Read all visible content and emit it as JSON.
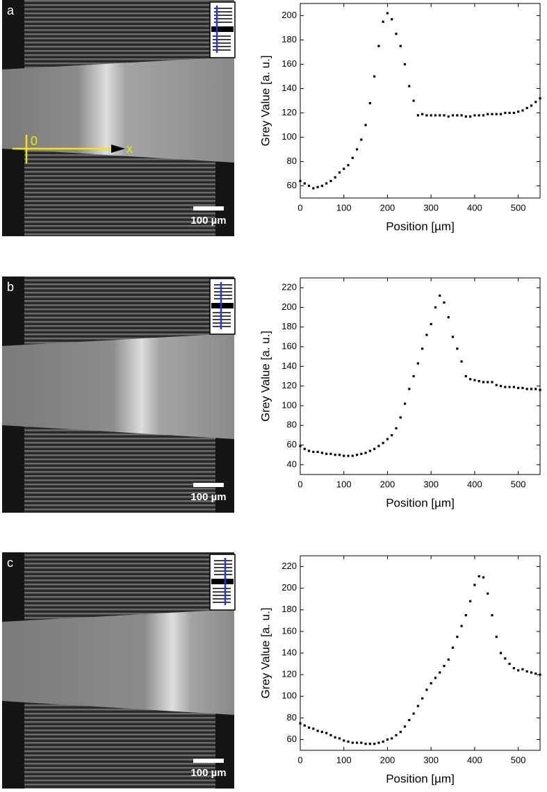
{
  "chart_data": [
    {
      "type": "scatter",
      "panel_label": "a",
      "scale_bar_label": "100 µm",
      "annotations": [
        "0",
        "x"
      ],
      "x_label": "Position [µm]",
      "y_label": "Grey Value [a. u.]",
      "color": "#000000",
      "xlim": [
        0,
        550
      ],
      "xticks": [
        0,
        100,
        200,
        300,
        400,
        500
      ],
      "ylim": [
        50,
        210
      ],
      "yticks": [
        60,
        80,
        100,
        120,
        140,
        160,
        180,
        200
      ],
      "x": [
        0,
        10,
        20,
        30,
        40,
        50,
        60,
        70,
        80,
        90,
        100,
        110,
        120,
        130,
        140,
        150,
        160,
        170,
        180,
        190,
        200,
        210,
        220,
        230,
        240,
        250,
        260,
        270,
        280,
        290,
        300,
        310,
        320,
        330,
        340,
        350,
        360,
        370,
        380,
        390,
        400,
        410,
        420,
        430,
        440,
        450,
        460,
        470,
        480,
        490,
        500,
        510,
        520,
        530,
        540,
        550
      ],
      "values": [
        64,
        62,
        60,
        58,
        59,
        60,
        62,
        64,
        67,
        71,
        74,
        77,
        83,
        90,
        98,
        110,
        128,
        150,
        175,
        195,
        202,
        197,
        185,
        175,
        160,
        142,
        130,
        118,
        119,
        118,
        118,
        118,
        118,
        118,
        117,
        118,
        118,
        118,
        117,
        117,
        118,
        118,
        118,
        119,
        119,
        119,
        119,
        120,
        120,
        120,
        121,
        122,
        124,
        126,
        129,
        132
      ]
    },
    {
      "type": "scatter",
      "panel_label": "b",
      "scale_bar_label": "100 µm",
      "x_label": "Position [µm]",
      "y_label": "Grey Value [a. u.]",
      "color": "#000000",
      "xlim": [
        0,
        550
      ],
      "xticks": [
        0,
        100,
        200,
        300,
        400,
        500
      ],
      "ylim": [
        30,
        230
      ],
      "yticks": [
        40,
        60,
        80,
        100,
        120,
        140,
        160,
        180,
        200,
        220
      ],
      "x": [
        0,
        10,
        20,
        30,
        40,
        50,
        60,
        70,
        80,
        90,
        100,
        110,
        120,
        130,
        140,
        150,
        160,
        170,
        180,
        190,
        200,
        210,
        220,
        230,
        240,
        250,
        260,
        270,
        280,
        290,
        300,
        310,
        320,
        330,
        340,
        350,
        360,
        370,
        380,
        390,
        400,
        410,
        420,
        430,
        440,
        450,
        460,
        470,
        480,
        490,
        500,
        510,
        520,
        530,
        540,
        550
      ],
      "values": [
        59,
        56,
        54,
        53,
        53,
        52,
        51,
        51,
        50,
        50,
        49,
        49,
        49,
        50,
        51,
        52,
        54,
        56,
        59,
        62,
        66,
        70,
        77,
        88,
        102,
        117,
        130,
        143,
        158,
        172,
        183,
        200,
        212,
        205,
        190,
        170,
        158,
        145,
        130,
        127,
        126,
        125,
        124,
        124,
        124,
        121,
        120,
        119,
        119,
        119,
        118,
        118,
        117,
        117,
        117,
        116
      ]
    },
    {
      "type": "scatter",
      "panel_label": "c",
      "scale_bar_label": "100 µm",
      "x_label": "Position [µm]",
      "y_label": "Grey Value [a. u.]",
      "color": "#000000",
      "xlim": [
        0,
        550
      ],
      "xticks": [
        0,
        100,
        200,
        300,
        400,
        500
      ],
      "ylim": [
        50,
        230
      ],
      "yticks": [
        60,
        80,
        100,
        120,
        140,
        160,
        180,
        200,
        220
      ],
      "x": [
        0,
        10,
        20,
        30,
        40,
        50,
        60,
        70,
        80,
        90,
        100,
        110,
        120,
        130,
        140,
        150,
        160,
        170,
        180,
        190,
        200,
        210,
        220,
        230,
        240,
        250,
        260,
        270,
        280,
        290,
        300,
        310,
        320,
        330,
        340,
        350,
        360,
        370,
        380,
        390,
        400,
        410,
        420,
        430,
        440,
        450,
        460,
        470,
        480,
        490,
        500,
        510,
        520,
        530,
        540,
        550
      ],
      "values": [
        75,
        73,
        71,
        70,
        68,
        67,
        66,
        64,
        62,
        61,
        59,
        58,
        57,
        57,
        57,
        56,
        56,
        56,
        57,
        58,
        60,
        61,
        64,
        67,
        72,
        78,
        84,
        91,
        98,
        106,
        112,
        117,
        122,
        128,
        134,
        145,
        155,
        165,
        175,
        188,
        203,
        211,
        210,
        195,
        175,
        155,
        140,
        135,
        130,
        126,
        124,
        125,
        123,
        122,
        121,
        120
      ]
    }
  ]
}
